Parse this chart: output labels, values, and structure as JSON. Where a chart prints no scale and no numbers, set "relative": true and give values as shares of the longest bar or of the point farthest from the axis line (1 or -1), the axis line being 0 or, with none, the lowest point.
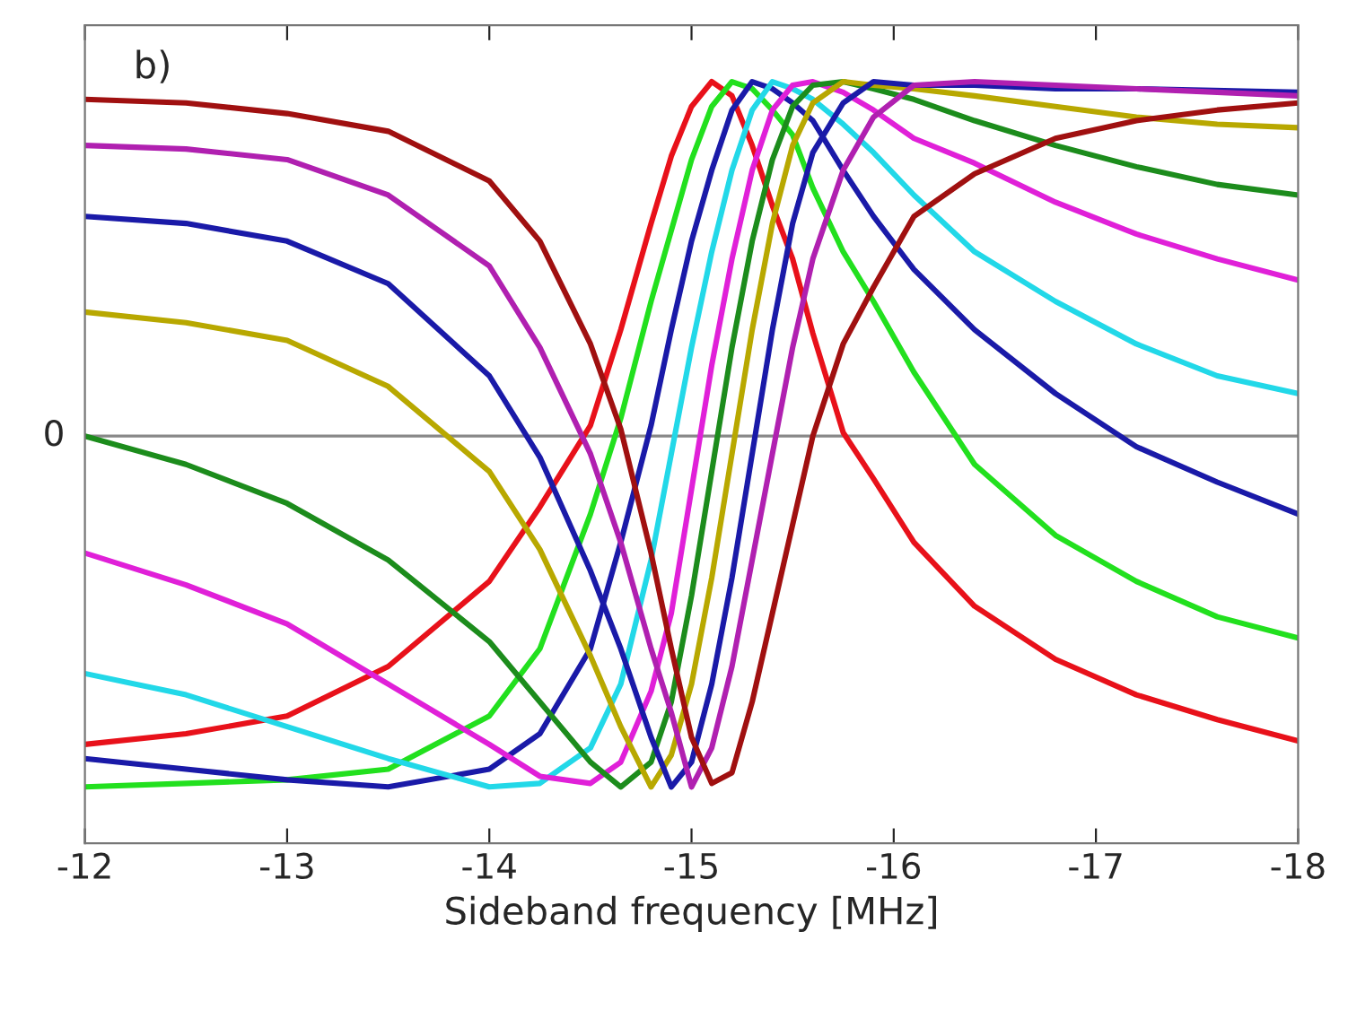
{
  "chart_data": {
    "type": "line",
    "relative": true,
    "xlabel": "Sideband frequency [MHz]",
    "annotations": [
      "b)"
    ],
    "xlim": [
      -12,
      -18
    ],
    "xticks": [
      -12,
      -13,
      -14,
      -15,
      -16,
      -17,
      -18
    ],
    "grid": false,
    "legend": false,
    "marker": "none",
    "line_style": "solid",
    "tick_labels": "x",
    "ref_lines": [
      {
        "axis": "y",
        "value": 0,
        "label": "0",
        "color": "#888888"
      }
    ],
    "x": [
      -12,
      -12.5,
      -13,
      -13.5,
      -14,
      -14.25,
      -14.5,
      -14.65,
      -14.8,
      -14.9,
      -15,
      -15.1,
      -15.2,
      -15.3,
      -15.4,
      -15.5,
      -15.6,
      -15.75,
      -15.9,
      -16.1,
      -16.4,
      -16.8,
      -17.2,
      -17.6,
      -18
    ],
    "series": [
      {
        "color": "#e8111a",
        "values": [
          -0.87,
          -0.84,
          -0.79,
          -0.65,
          -0.41,
          -0.2,
          0.03,
          0.3,
          0.6,
          0.79,
          0.93,
          1.0,
          0.96,
          0.82,
          0.65,
          0.5,
          0.29,
          0.01,
          -0.12,
          -0.3,
          -0.48,
          -0.63,
          -0.73,
          -0.8,
          -0.86
        ]
      },
      {
        "color": "#22e01e",
        "values": [
          -0.99,
          -0.98,
          -0.97,
          -0.94,
          -0.79,
          -0.6,
          -0.22,
          0.05,
          0.38,
          0.58,
          0.78,
          0.93,
          1.0,
          0.98,
          0.92,
          0.85,
          0.7,
          0.52,
          0.38,
          0.18,
          -0.08,
          -0.28,
          -0.41,
          -0.51,
          -0.57
        ]
      },
      {
        "color": "#1a1aa8",
        "values": [
          -0.91,
          -0.94,
          -0.97,
          -0.99,
          -0.94,
          -0.84,
          -0.6,
          -0.3,
          0.03,
          0.3,
          0.55,
          0.75,
          0.92,
          1.0,
          0.98,
          0.94,
          0.89,
          0.75,
          0.62,
          0.47,
          0.3,
          0.12,
          -0.03,
          -0.13,
          -0.22
        ]
      },
      {
        "color": "#22d8e8",
        "values": [
          -0.67,
          -0.73,
          -0.82,
          -0.91,
          -0.99,
          -0.98,
          -0.88,
          -0.7,
          -0.35,
          -0.05,
          0.25,
          0.52,
          0.75,
          0.92,
          1.0,
          0.98,
          0.95,
          0.88,
          0.8,
          0.68,
          0.52,
          0.38,
          0.26,
          0.17,
          0.12
        ]
      },
      {
        "color": "#e020d8",
        "values": [
          -0.33,
          -0.42,
          -0.53,
          -0.7,
          -0.87,
          -0.96,
          -0.98,
          -0.92,
          -0.72,
          -0.5,
          -0.15,
          0.2,
          0.5,
          0.75,
          0.92,
          0.99,
          1.0,
          0.97,
          0.92,
          0.84,
          0.77,
          0.66,
          0.57,
          0.5,
          0.44
        ]
      },
      {
        "color": "#1c8c1c",
        "values": [
          0.0,
          -0.08,
          -0.19,
          -0.35,
          -0.58,
          -0.75,
          -0.92,
          -0.99,
          -0.92,
          -0.75,
          -0.45,
          -0.1,
          0.25,
          0.55,
          0.78,
          0.93,
          0.99,
          1.0,
          0.98,
          0.95,
          0.89,
          0.82,
          0.76,
          0.71,
          0.68
        ]
      },
      {
        "color": "#b8a800",
        "values": [
          0.35,
          0.32,
          0.27,
          0.14,
          -0.1,
          -0.32,
          -0.62,
          -0.82,
          -0.99,
          -0.9,
          -0.7,
          -0.4,
          -0.05,
          0.3,
          0.6,
          0.82,
          0.94,
          1.0,
          0.99,
          0.98,
          0.96,
          0.93,
          0.9,
          0.88,
          0.87
        ]
      },
      {
        "color": "#1a1aa8",
        "values": [
          0.62,
          0.6,
          0.55,
          0.43,
          0.17,
          -0.06,
          -0.38,
          -0.6,
          -0.85,
          -0.99,
          -0.92,
          -0.7,
          -0.4,
          -0.05,
          0.3,
          0.6,
          0.8,
          0.94,
          1.0,
          0.99,
          0.99,
          0.98,
          0.98,
          null,
          0.97
        ]
      },
      {
        "color": "#b020b0",
        "values": [
          0.82,
          0.81,
          0.78,
          0.68,
          0.48,
          0.25,
          -0.05,
          -0.3,
          -0.6,
          -0.78,
          -0.99,
          -0.88,
          -0.65,
          -0.35,
          -0.05,
          0.25,
          0.5,
          0.75,
          0.9,
          0.99,
          1.0,
          0.99,
          0.98,
          0.97,
          0.96
        ]
      },
      {
        "color": "#a01010",
        "values": [
          0.95,
          0.94,
          0.91,
          0.86,
          0.72,
          0.55,
          0.26,
          0.02,
          -0.33,
          -0.6,
          -0.85,
          -0.98,
          -0.95,
          -0.75,
          -0.5,
          -0.25,
          0.0,
          0.26,
          0.42,
          0.62,
          0.74,
          0.84,
          0.89,
          0.92,
          0.94
        ]
      }
    ]
  }
}
